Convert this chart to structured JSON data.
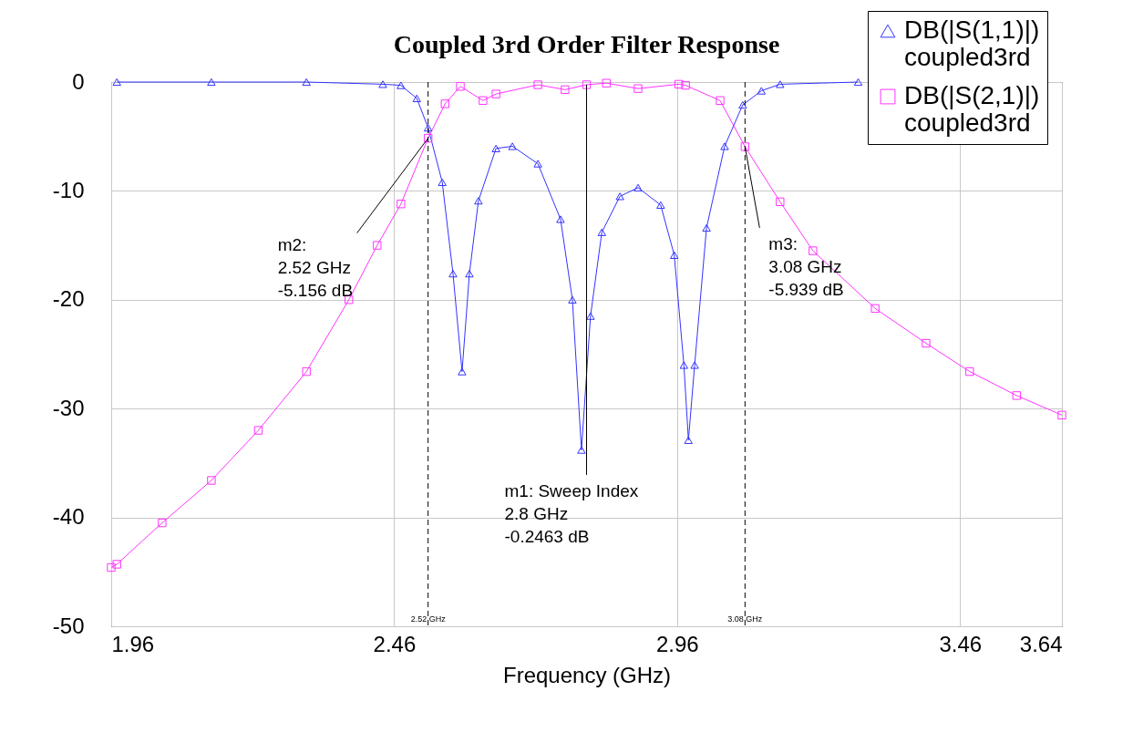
{
  "chart_data": {
    "type": "line",
    "title": "Coupled 3rd Order Filter Response",
    "xlabel": "Frequency (GHz)",
    "xlim": [
      1.96,
      3.64
    ],
    "xticks": [
      1.96,
      2.46,
      2.96,
      3.46,
      3.64
    ],
    "ylim": [
      -50,
      0
    ],
    "yticks": [
      -50,
      -40,
      -30,
      -20,
      -10,
      0
    ],
    "grid": true,
    "legend": "top right",
    "series": [
      {
        "name": "DB(|S(1,1)|) coupled3rd",
        "color": "#3333ff",
        "marker": "triangle",
        "x": [
          1.97,
          2.137,
          2.305,
          2.44,
          2.472,
          2.5,
          2.52,
          2.545,
          2.564,
          2.58,
          2.593,
          2.609,
          2.64,
          2.669,
          2.714,
          2.754,
          2.775,
          2.791,
          2.807,
          2.827,
          2.859,
          2.891,
          2.931,
          2.955,
          2.972,
          2.98,
          2.991,
          3.012,
          3.044,
          3.076,
          3.109,
          3.142,
          3.28
        ],
        "values": [
          0,
          0,
          0,
          -0.2,
          -0.3,
          -1.5,
          -4.2,
          -9.2,
          -17.6,
          -26.6,
          -17.6,
          -10.9,
          -6.1,
          -5.9,
          -7.5,
          -12.6,
          -20,
          -33.8,
          -21.5,
          -13.8,
          -10.5,
          -9.7,
          -11.3,
          -15.9,
          -26,
          -32.9,
          -26,
          -13.4,
          -5.9,
          -2.1,
          -0.8,
          -0.2,
          0
        ]
      },
      {
        "name": "DB(|S(2,1)|) coupled3rd",
        "color": "#ff33ff",
        "marker": "square",
        "x": [
          1.96,
          1.97,
          2.05,
          2.137,
          2.22,
          2.305,
          2.38,
          2.43,
          2.472,
          2.52,
          2.55,
          2.577,
          2.617,
          2.64,
          2.714,
          2.762,
          2.8,
          2.835,
          2.891,
          2.963,
          2.975,
          3.036,
          3.08,
          3.142,
          3.2,
          3.31,
          3.4,
          3.477,
          3.56,
          3.64
        ],
        "values": [
          -44.6,
          -44.3,
          -40.5,
          -36.6,
          -32,
          -26.6,
          -20,
          -15,
          -11.2,
          -5.156,
          -2,
          -0.4,
          -1.7,
          -1.1,
          -0.25,
          -0.7,
          -0.246,
          -0.1,
          -0.6,
          -0.2,
          -0.3,
          -1.7,
          -5.939,
          -11,
          -15.5,
          -20.8,
          -24,
          -26.6,
          -28.8,
          -30.6
        ]
      }
    ],
    "ref_lines": [
      {
        "axis": "x",
        "value": 2.52,
        "label": "2.52 GHz",
        "line_style": "dashed",
        "color": "#000000"
      },
      {
        "axis": "x",
        "value": 3.08,
        "label": "3.08 GHz",
        "line_style": "dashed",
        "color": "#000000"
      }
    ],
    "annotations": [
      {
        "text": "m2:\n2.52 GHz\n-5.156 dB",
        "x": 2.52,
        "y": -5.156
      },
      {
        "text": "m1: Sweep Index\n2.8 GHz\n-0.2463 dB",
        "x": 2.8,
        "y": -0.2463
      },
      {
        "text": "m3:\n3.08 GHz\n-5.939 dB",
        "x": 3.08,
        "y": -5.939
      }
    ]
  }
}
